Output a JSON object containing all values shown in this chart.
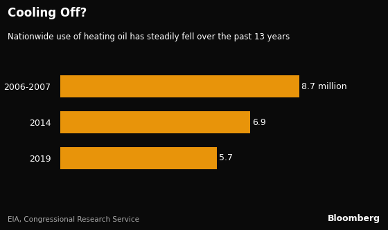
{
  "title": "Cooling Off?",
  "subtitle": "Nationwide use of heating oil has steadily fell over the past 13 years",
  "categories": [
    "2006-2007",
    "2014",
    "2019"
  ],
  "values": [
    8.7,
    6.9,
    5.7
  ],
  "labels": [
    "8.7 million",
    "6.9",
    "5.7"
  ],
  "bar_color": "#E8940A",
  "background_color": "#0a0a0a",
  "text_color": "#FFFFFF",
  "source_text": "EIA, Congressional Research Service",
  "bloomberg_text": "Bloomberg",
  "max_value": 9.6,
  "title_fontsize": 12,
  "subtitle_fontsize": 8.5,
  "label_fontsize": 9,
  "category_fontsize": 9,
  "source_fontsize": 7.5,
  "bloomberg_fontsize": 9
}
